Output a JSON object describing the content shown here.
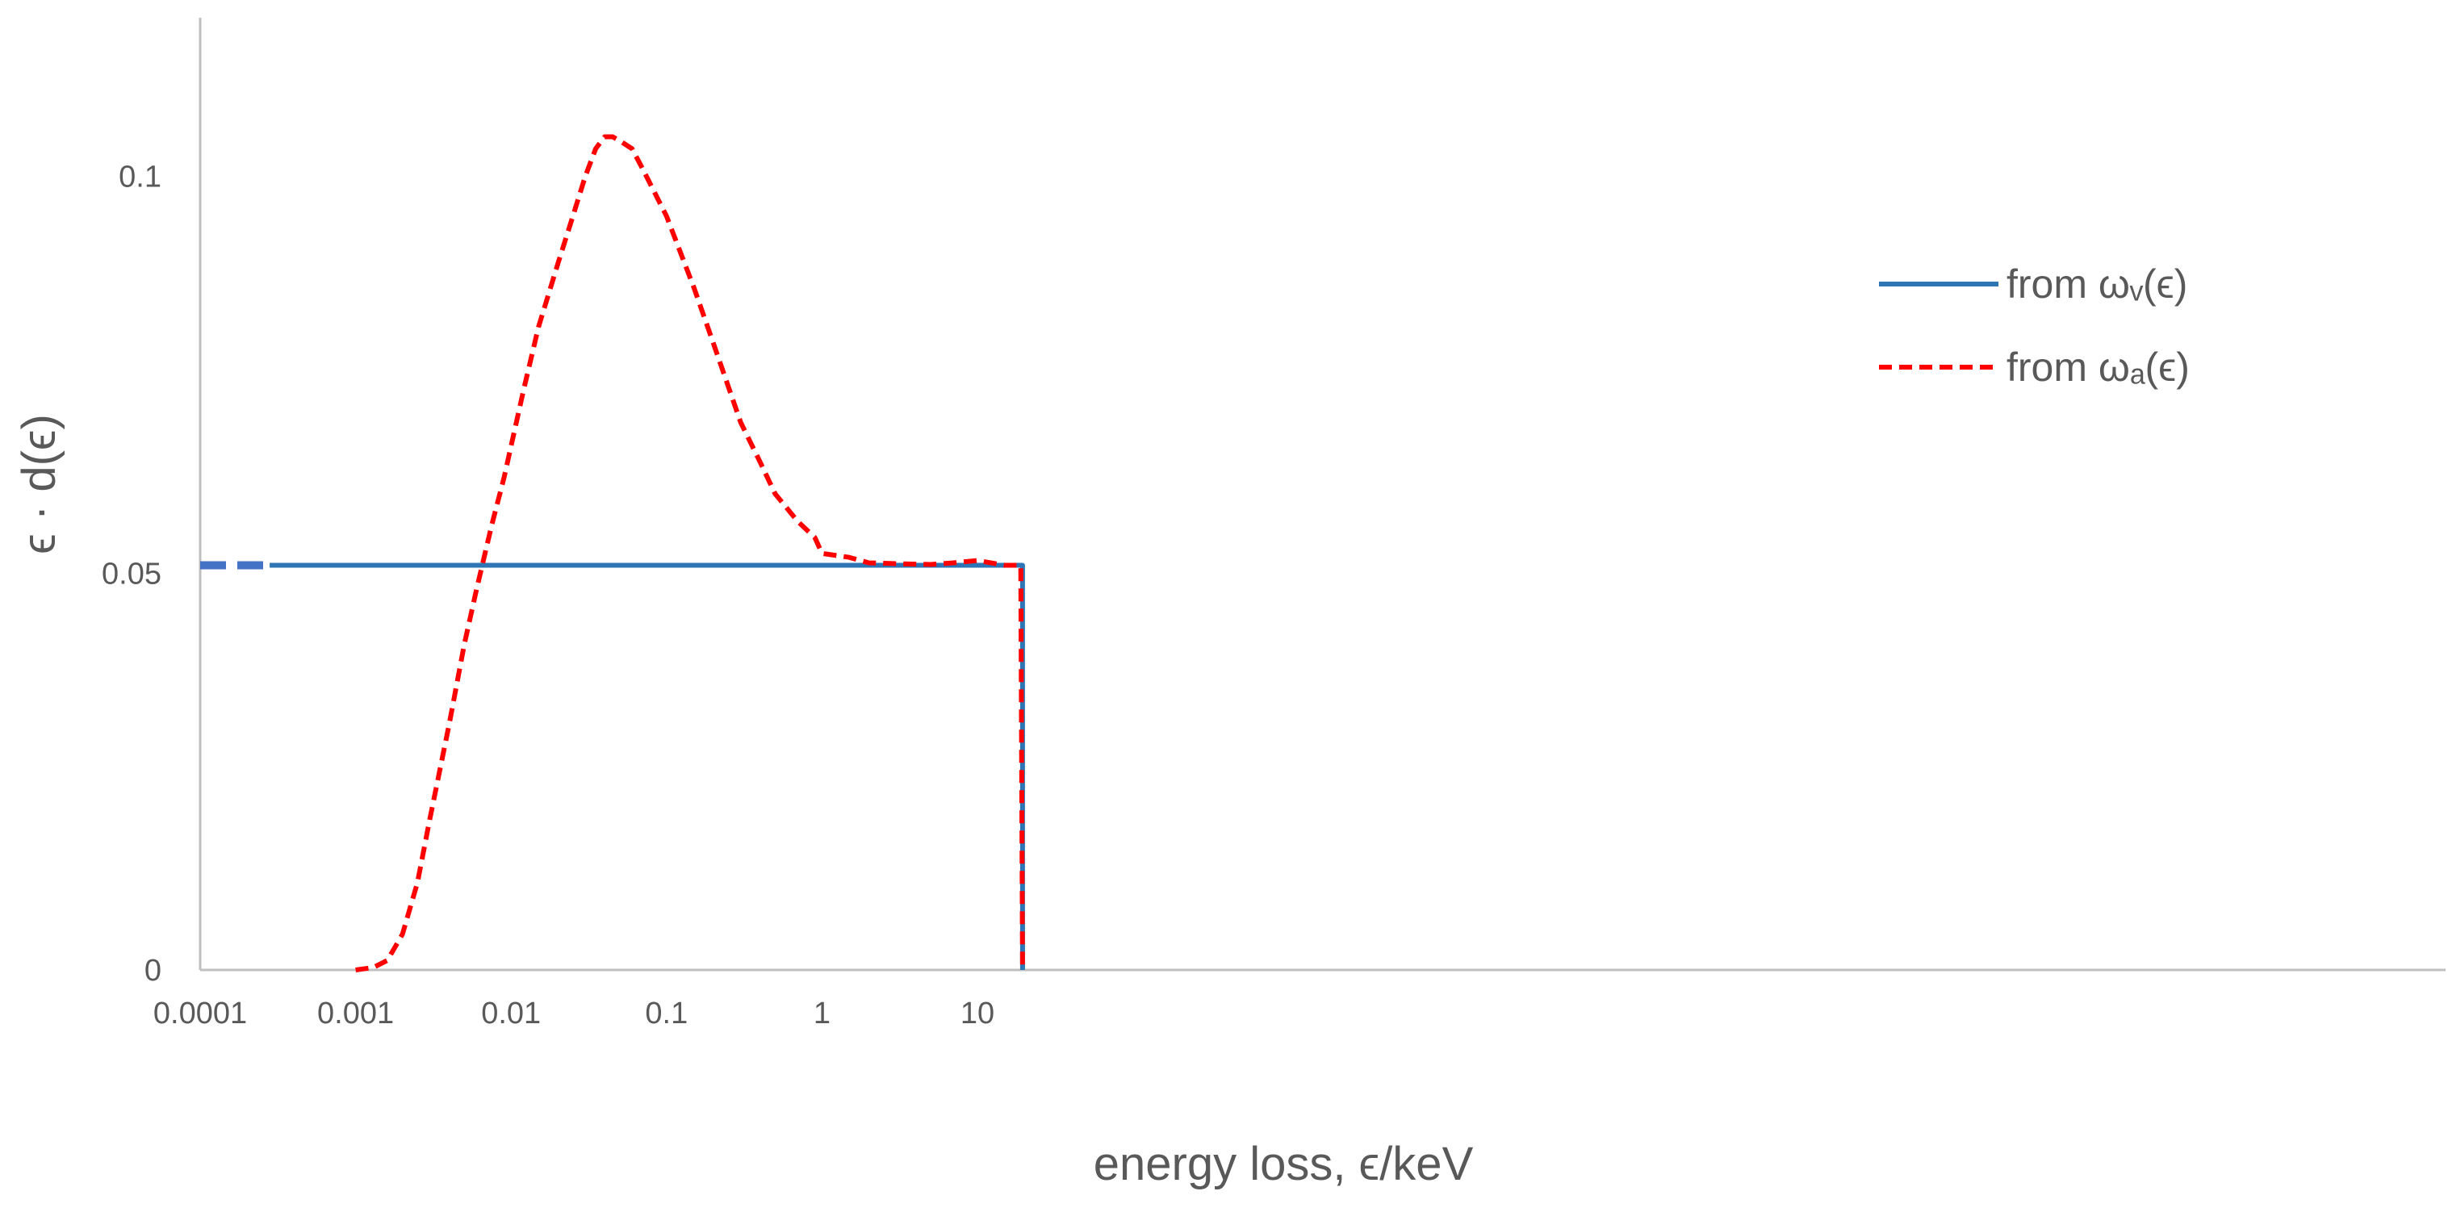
{
  "chart_data": {
    "type": "line",
    "title": "",
    "xlabel": "energy loss, ϵ/keV",
    "ylabel": "ϵ · d(ϵ)",
    "x_scale": "log",
    "xlim": [
      0.0001,
      25
    ],
    "ylim": [
      0,
      0.12
    ],
    "x_ticks": [
      0.0001,
      0.001,
      0.01,
      0.1,
      1,
      10
    ],
    "x_tick_labels": [
      "0.0001",
      "0.001",
      "0.01",
      "0.1",
      "1",
      "10"
    ],
    "y_ticks": [
      0,
      0.05,
      0.1
    ],
    "y_tick_labels": [
      "0",
      "0.05",
      "0.1"
    ],
    "grid": false,
    "legend_position": "right",
    "series": [
      {
        "name": "from ωᵥ(ϵ)",
        "color": "#2E75B6",
        "style": "solid",
        "x": [
          0.00028,
          0.001,
          0.01,
          0.1,
          1,
          10,
          19.5,
          19.5
        ],
        "y": [
          0.051,
          0.051,
          0.051,
          0.051,
          0.051,
          0.051,
          0.051,
          0
        ]
      },
      {
        "name": "from ωₐ(ϵ)",
        "color": "#FF0000",
        "style": "dashed",
        "x": [
          0.001,
          0.0013,
          0.0016,
          0.002,
          0.0025,
          0.003,
          0.004,
          0.005,
          0.006,
          0.0075,
          0.009,
          0.012,
          0.015,
          0.02,
          0.025,
          0.03,
          0.035,
          0.04,
          0.045,
          0.05,
          0.06,
          0.07,
          0.1,
          0.15,
          0.2,
          0.3,
          0.4,
          0.5,
          0.7,
          0.9,
          1.0,
          1.5,
          2,
          3,
          5,
          7,
          10,
          15,
          19,
          19.5
        ],
        "y": [
          0,
          0.0003,
          0.0012,
          0.0045,
          0.011,
          0.019,
          0.031,
          0.041,
          0.048,
          0.056,
          0.062,
          0.073,
          0.081,
          0.089,
          0.095,
          0.1,
          0.1035,
          0.105,
          0.105,
          0.1045,
          0.1035,
          0.101,
          0.095,
          0.086,
          0.079,
          0.069,
          0.064,
          0.06,
          0.0565,
          0.0545,
          0.0525,
          0.052,
          0.0513,
          0.0512,
          0.0511,
          0.0513,
          0.0516,
          0.051,
          0.051,
          0
        ]
      }
    ],
    "extension": {
      "color": "#4472C4",
      "style": "dashed",
      "x": [
        0.0001,
        0.00028
      ],
      "y": [
        0.051,
        0.051
      ]
    }
  }
}
